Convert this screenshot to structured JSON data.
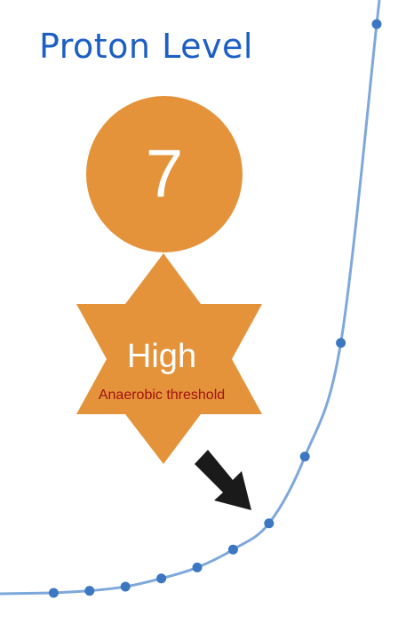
{
  "title": "Proton Level",
  "indicator": {
    "value": "7",
    "level": "High",
    "zone": "Anaerobic threshold"
  },
  "colors": {
    "title": "#1c5fc4",
    "badge": "#e5933a",
    "zone_text": "#a0130e",
    "curve": "#7ea8dc",
    "point": "#3b78c1",
    "arrow": "#1a1a1a"
  },
  "icons": {
    "pointer": "arrow-down-right-icon"
  },
  "chart_data": {
    "type": "line",
    "title": "",
    "xlabel": "",
    "ylabel": "",
    "shape": "exponential",
    "x": [
      1,
      2,
      3,
      4,
      5,
      6,
      7,
      8,
      9,
      10
    ],
    "y": [
      0.0,
      0.3,
      0.9,
      2.1,
      3.7,
      6.3,
      10.1,
      19.8,
      36.3,
      82.6
    ],
    "xlim": [
      0,
      10.7
    ],
    "ylim": [
      0,
      83
    ],
    "highlighted_point_index": 6,
    "grid": false
  }
}
